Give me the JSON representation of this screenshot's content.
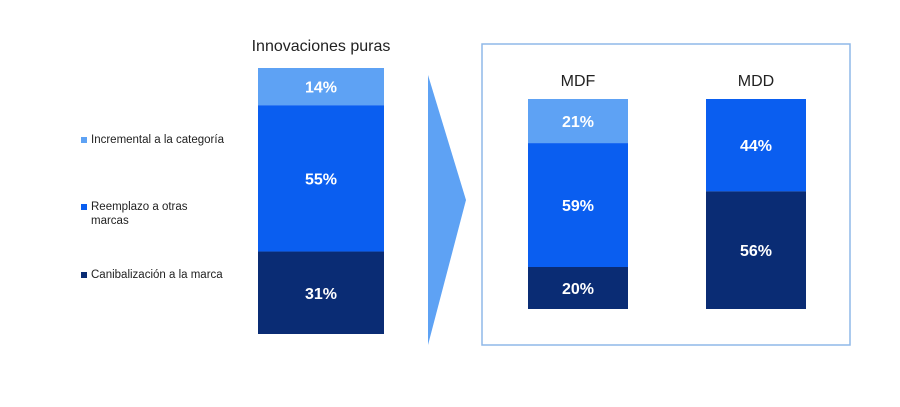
{
  "colors": {
    "incremental": "#5ea2f4",
    "reemplazo": "#0a5ef0",
    "canibalizacion": "#0a2c74",
    "arrow": "#5ea2f4",
    "frame": "#8fb8e8"
  },
  "legend": [
    {
      "label": "Incremental a la categoría",
      "color_key": "incremental"
    },
    {
      "label": "Reemplazo a otras marcas",
      "color_key": "reemplazo"
    },
    {
      "label": "Canibalización a la marca",
      "color_key": "canibalizacion"
    }
  ],
  "chart_data": [
    {
      "type": "bar",
      "stacked": true,
      "title": "Innovaciones puras",
      "categories": [
        "Innovaciones puras"
      ],
      "series": [
        {
          "name": "Incremental a la categoría",
          "values": [
            14
          ]
        },
        {
          "name": "Reemplazo a otras marcas",
          "values": [
            55
          ]
        },
        {
          "name": "Canibalización a la marca",
          "values": [
            31
          ]
        }
      ],
      "labels": [
        "14%",
        "55%",
        "31%"
      ],
      "ylim": [
        0,
        100
      ]
    },
    {
      "type": "bar",
      "stacked": true,
      "title": "",
      "categories": [
        "MDF",
        "MDD"
      ],
      "series": [
        {
          "name": "Incremental a la categoría",
          "values": [
            21,
            0
          ]
        },
        {
          "name": "Reemplazo a otras marcas",
          "values": [
            59,
            44
          ]
        },
        {
          "name": "Canibalización a la marca",
          "values": [
            20,
            56
          ]
        }
      ],
      "labels": [
        [
          "21%",
          "59%",
          "20%"
        ],
        [
          "",
          "44%",
          "56%"
        ]
      ],
      "ylim": [
        0,
        100
      ]
    }
  ]
}
